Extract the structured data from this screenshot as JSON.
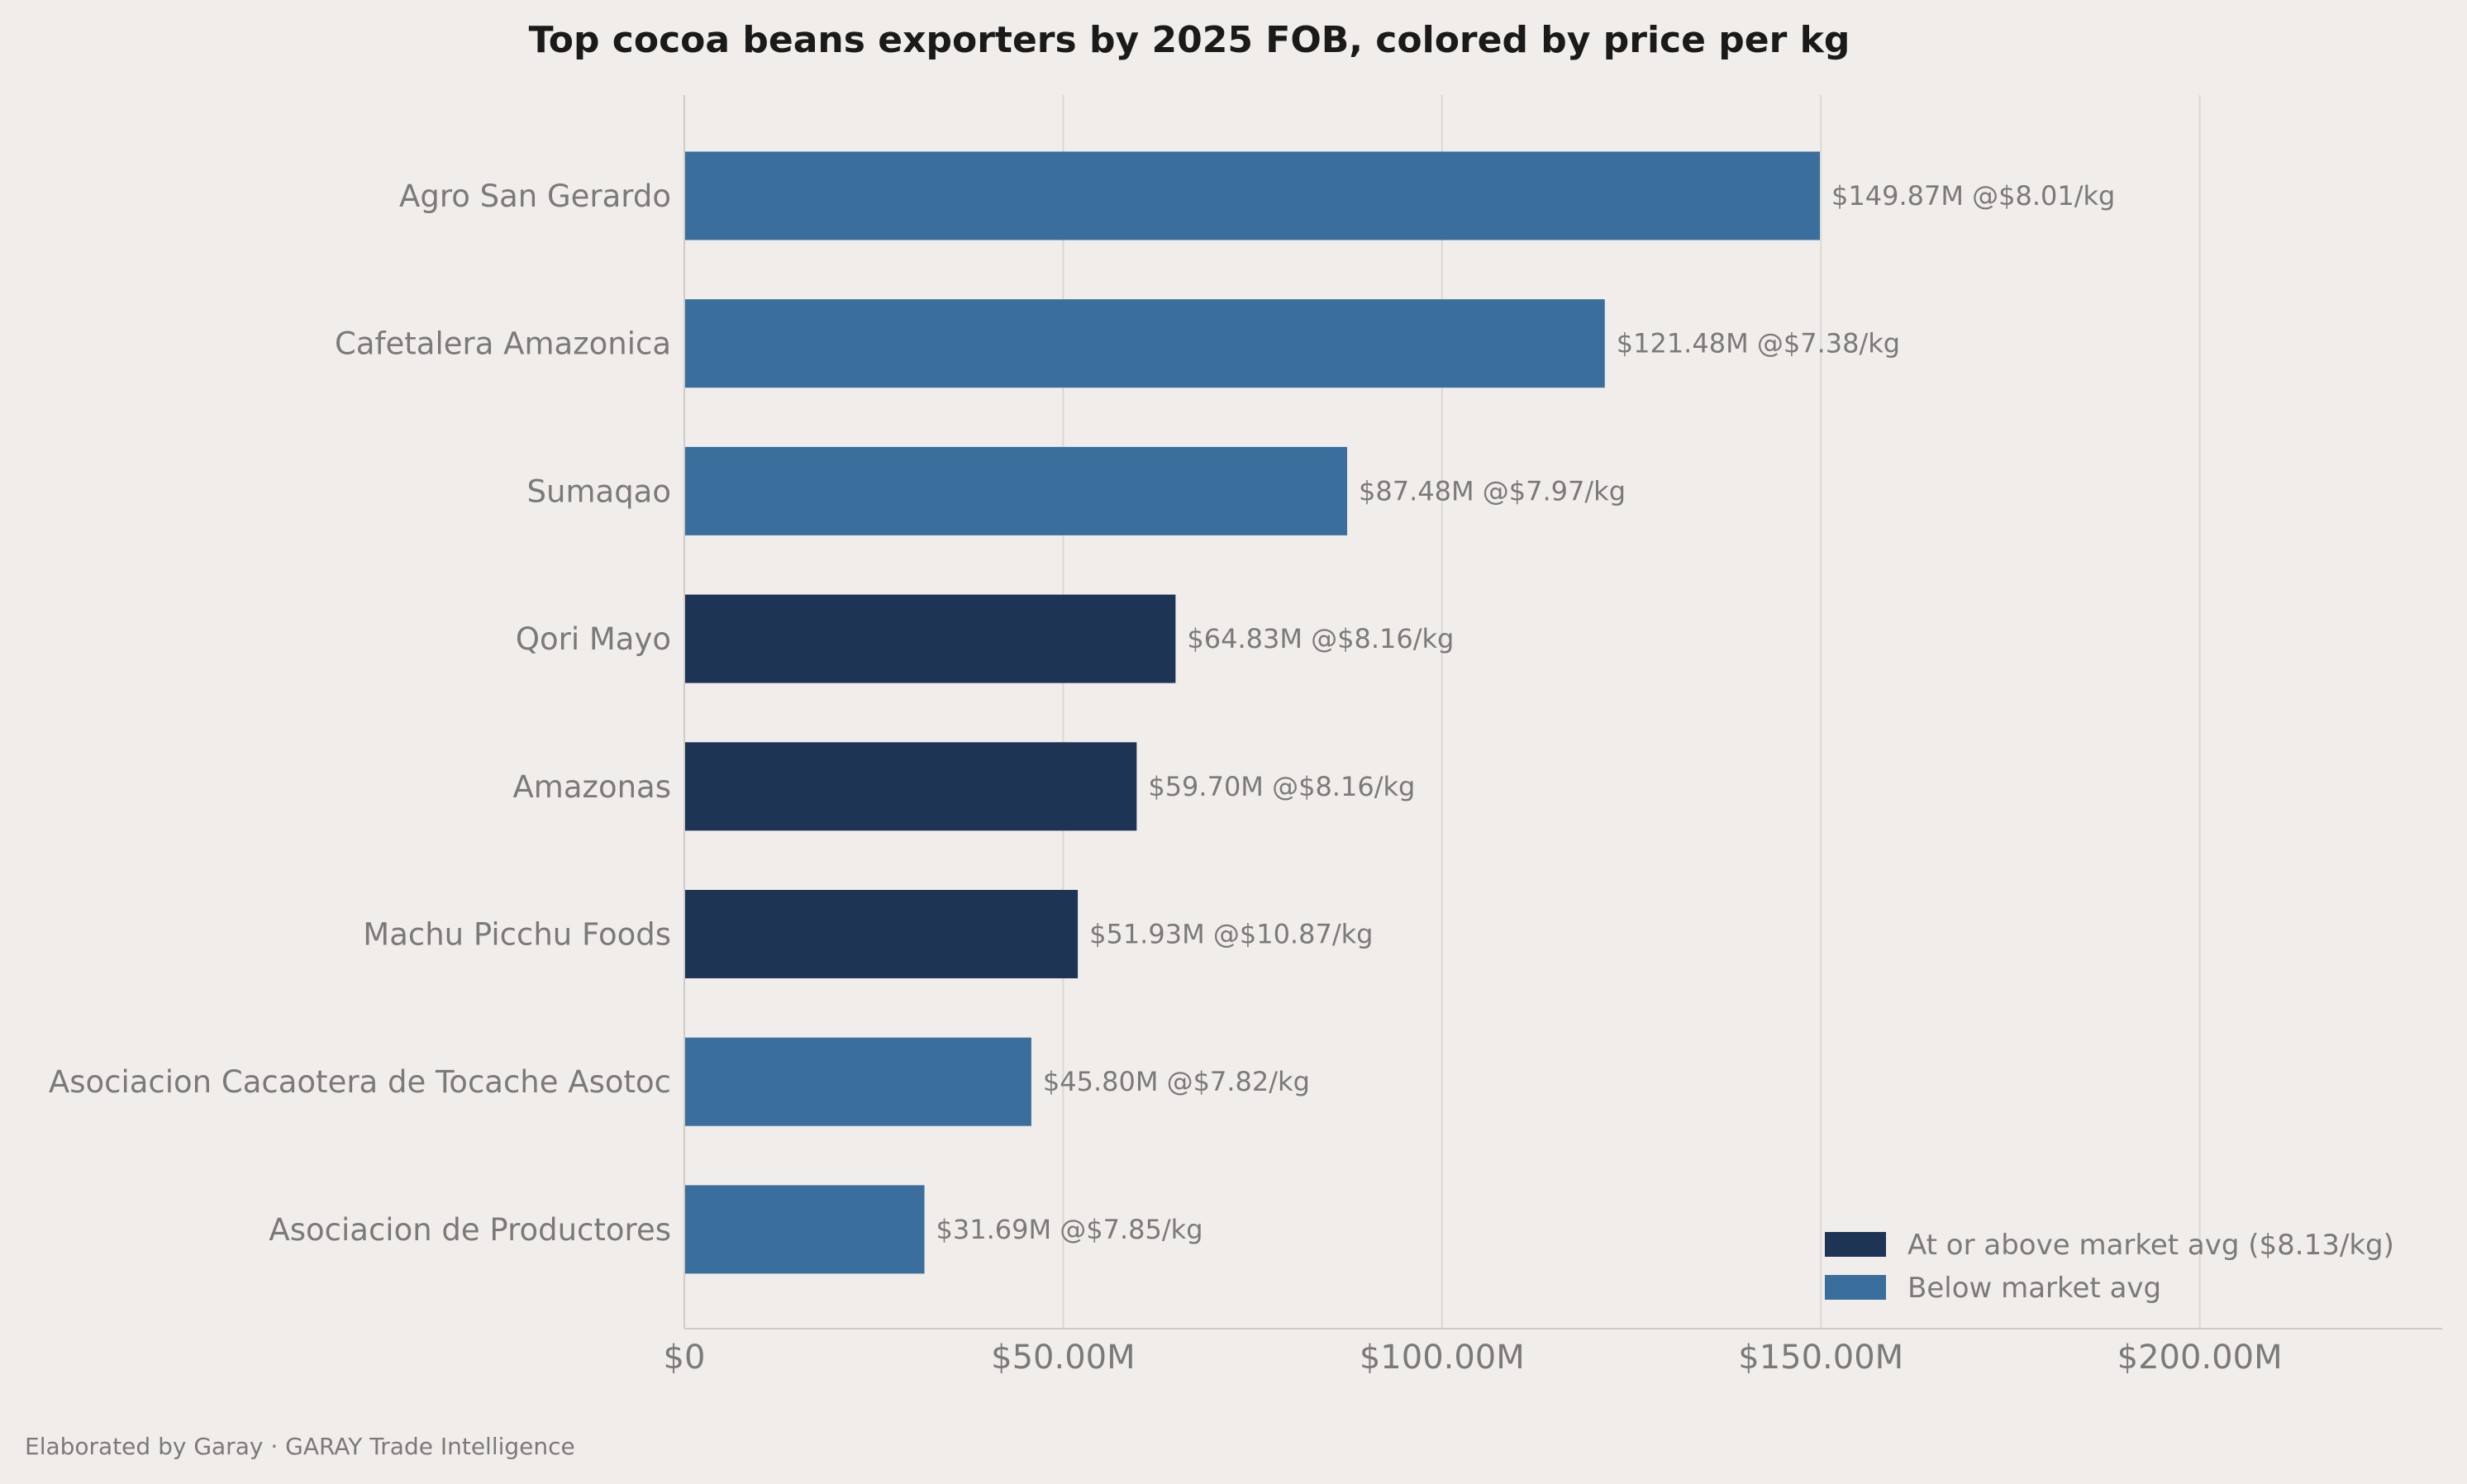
{
  "chart_data": {
    "type": "bar",
    "orientation": "horizontal",
    "title": "Top cocoa beans exporters by 2025 FOB, colored by price per kg",
    "xlabel": "",
    "ylabel": "",
    "xlim": [
      0,
      232000000
    ],
    "xticks": [
      0,
      50000000,
      100000000,
      150000000,
      200000000
    ],
    "xtick_labels": [
      "$0",
      "$50.00M",
      "$100.00M",
      "$150.00M",
      "$200.00M"
    ],
    "grid": "vertical",
    "categories": [
      "Agro San Gerardo",
      "Cafetalera Amazonica",
      "Sumaqao",
      "Qori Mayo",
      "Amazonas",
      "Machu Picchu Foods",
      "Asociacion Cacaotera de Tocache Asotoc",
      "Asociacion de Productores"
    ],
    "values": [
      149870000,
      121480000,
      87480000,
      64830000,
      59700000,
      51930000,
      45800000,
      31690000
    ],
    "price_per_kg": [
      8.01,
      7.38,
      7.97,
      8.16,
      8.16,
      10.87,
      7.82,
      7.85
    ],
    "groups": [
      "below",
      "below",
      "below",
      "above",
      "above",
      "above",
      "below",
      "below"
    ],
    "data_labels": [
      "$149.87M  @$8.01/kg",
      "$121.48M  @$7.38/kg",
      "$87.48M  @$7.97/kg",
      "$64.83M  @$8.16/kg",
      "$59.70M  @$8.16/kg",
      "$51.93M  @$10.87/kg",
      "$45.80M  @$7.82/kg",
      "$31.69M  @$7.85/kg"
    ],
    "legend": {
      "placement": "bottom-right",
      "entries": [
        {
          "key": "above",
          "label": "At or above market avg ($8.13/kg)",
          "color": "#1e3455"
        },
        {
          "key": "below",
          "label": "Below market avg",
          "color": "#3a6f9d"
        }
      ]
    }
  },
  "footer": {
    "credit": "Elaborated by Garay  ·  GARAY Trade Intelligence"
  },
  "colors": {
    "background": "#f1edea",
    "above": "#1e3455",
    "below": "#3a6f9d"
  }
}
